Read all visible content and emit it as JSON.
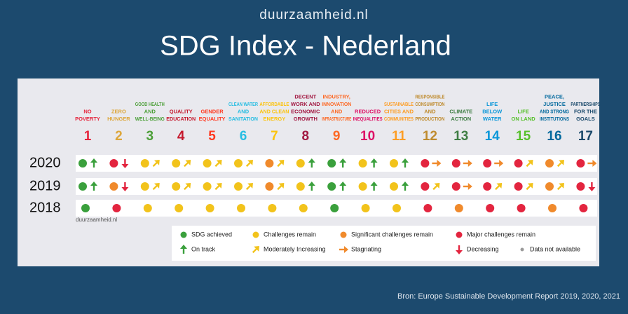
{
  "brand": "duurzaamheid.nl",
  "title": "SDG Index - Nederland",
  "goals": [
    {
      "number": 1,
      "label": [
        "NO",
        "POVERTY"
      ],
      "color": "#e5243b"
    },
    {
      "number": 2,
      "label": [
        "ZERO",
        "HUNGER"
      ],
      "color": "#dda63a"
    },
    {
      "number": 3,
      "label": [
        "GOOD HEALTH",
        "AND",
        "WELL-BEING"
      ],
      "color": "#4c9f38"
    },
    {
      "number": 4,
      "label": [
        "QUALITY",
        "EDUCATION"
      ],
      "color": "#c5192d"
    },
    {
      "number": 5,
      "label": [
        "GENDER",
        "EQUALITY"
      ],
      "color": "#ff3a21"
    },
    {
      "number": 6,
      "label": [
        "CLEAN WATER",
        "AND",
        "SANITATION"
      ],
      "color": "#26bde2"
    },
    {
      "number": 7,
      "label": [
        "AFFORDABLE",
        "AND CLEAN",
        "ENERGY"
      ],
      "color": "#fcc30b"
    },
    {
      "number": 8,
      "label": [
        "DECENT",
        "WORK AND",
        "ECONOMIC",
        "GROWTH"
      ],
      "color": "#a21942"
    },
    {
      "number": 9,
      "label": [
        "INDUSTRY,",
        "INNOVATION",
        "AND",
        "INFRASTRUCTURE"
      ],
      "color": "#fd6925"
    },
    {
      "number": 10,
      "label": [
        "REDUCED",
        "INEQUALITIES"
      ],
      "color": "#dd1367"
    },
    {
      "number": 11,
      "label": [
        "SUSTAINABLE",
        "CITIES AND",
        "COMMUNITIES"
      ],
      "color": "#fd9d24"
    },
    {
      "number": 12,
      "label": [
        "RESPONSIBLE",
        "CONSUMPTION",
        "AND",
        "PRODUCTION"
      ],
      "color": "#bf8b2e"
    },
    {
      "number": 13,
      "label": [
        "CLIMATE",
        "ACTION"
      ],
      "color": "#3f7e44"
    },
    {
      "number": 14,
      "label": [
        "LIFE",
        "BELOW",
        "WATER"
      ],
      "color": "#0a97d9"
    },
    {
      "number": 15,
      "label": [
        "LIFE",
        "ON LAND"
      ],
      "color": "#56c02b"
    },
    {
      "number": 16,
      "label": [
        "PEACE,",
        "JUSTICE",
        "AND STRONG",
        "INSTITUTIONS"
      ],
      "color": "#00689d"
    },
    {
      "number": 17,
      "label": [
        "PARTNERSHIPS",
        "FOR THE",
        "GOALS"
      ],
      "color": "#19486a"
    }
  ],
  "rows": [
    {
      "year": 2020,
      "cells": [
        {
          "status": "achieved",
          "trend": "on_track"
        },
        {
          "status": "major",
          "trend": "decreasing"
        },
        {
          "status": "challenges",
          "trend": "moderate"
        },
        {
          "status": "challenges",
          "trend": "moderate"
        },
        {
          "status": "challenges",
          "trend": "moderate"
        },
        {
          "status": "challenges",
          "trend": "moderate"
        },
        {
          "status": "significant",
          "trend": "moderate"
        },
        {
          "status": "challenges",
          "trend": "on_track"
        },
        {
          "status": "achieved",
          "trend": "on_track"
        },
        {
          "status": "challenges",
          "trend": "on_track"
        },
        {
          "status": "challenges",
          "trend": "on_track"
        },
        {
          "status": "major",
          "trend": "stagnating"
        },
        {
          "status": "major",
          "trend": "stagnating"
        },
        {
          "status": "major",
          "trend": "stagnating"
        },
        {
          "status": "major",
          "trend": "moderate"
        },
        {
          "status": "significant",
          "trend": "moderate"
        },
        {
          "status": "major",
          "trend": "stagnating"
        }
      ]
    },
    {
      "year": 2019,
      "cells": [
        {
          "status": "achieved",
          "trend": "on_track"
        },
        {
          "status": "significant",
          "trend": "decreasing"
        },
        {
          "status": "challenges",
          "trend": "moderate"
        },
        {
          "status": "challenges",
          "trend": "moderate"
        },
        {
          "status": "challenges",
          "trend": "moderate"
        },
        {
          "status": "challenges",
          "trend": "moderate"
        },
        {
          "status": "significant",
          "trend": "moderate"
        },
        {
          "status": "challenges",
          "trend": "on_track"
        },
        {
          "status": "achieved",
          "trend": "on_track"
        },
        {
          "status": "challenges",
          "trend": "on_track"
        },
        {
          "status": "challenges",
          "trend": "on_track"
        },
        {
          "status": "major",
          "trend": "moderate"
        },
        {
          "status": "major",
          "trend": "stagnating"
        },
        {
          "status": "major",
          "trend": "moderate"
        },
        {
          "status": "major",
          "trend": "moderate"
        },
        {
          "status": "significant",
          "trend": "moderate"
        },
        {
          "status": "major",
          "trend": "decreasing"
        }
      ]
    },
    {
      "year": 2018,
      "cells": [
        {
          "status": "achieved"
        },
        {
          "status": "major"
        },
        {
          "status": "challenges"
        },
        {
          "status": "challenges"
        },
        {
          "status": "challenges"
        },
        {
          "status": "challenges"
        },
        {
          "status": "challenges"
        },
        {
          "status": "challenges"
        },
        {
          "status": "achieved"
        },
        {
          "status": "challenges"
        },
        {
          "status": "challenges"
        },
        {
          "status": "major"
        },
        {
          "status": "significant"
        },
        {
          "status": "major"
        },
        {
          "status": "major"
        },
        {
          "status": "significant"
        },
        {
          "status": "major"
        }
      ]
    }
  ],
  "watermark": "duurzaamheid.nl",
  "legend": {
    "status": [
      {
        "key": "achieved",
        "label": "SDG achieved",
        "color": "#3aa03c"
      },
      {
        "key": "challenges",
        "label": "Challenges remain",
        "color": "#f2c31b"
      },
      {
        "key": "significant",
        "label": "Significant challenges remain",
        "color": "#f08a2c"
      },
      {
        "key": "major",
        "label": "Major challenges remain",
        "color": "#e3253f"
      }
    ],
    "trend": [
      {
        "key": "on_track",
        "label": "On track",
        "color": "#3aa03c"
      },
      {
        "key": "moderate",
        "label": "Moderately Increasing",
        "color": "#f2c31b"
      },
      {
        "key": "stagnating",
        "label": "Stagnating",
        "color": "#f08a2c"
      },
      {
        "key": "decreasing",
        "label": "Decreasing",
        "color": "#e3253f"
      },
      {
        "key": "na",
        "label": "Data not available",
        "color": "#9a9a9a"
      }
    ]
  },
  "source": "Bron: Europe Sustainable Development Report 2019, 2020, 2021"
}
